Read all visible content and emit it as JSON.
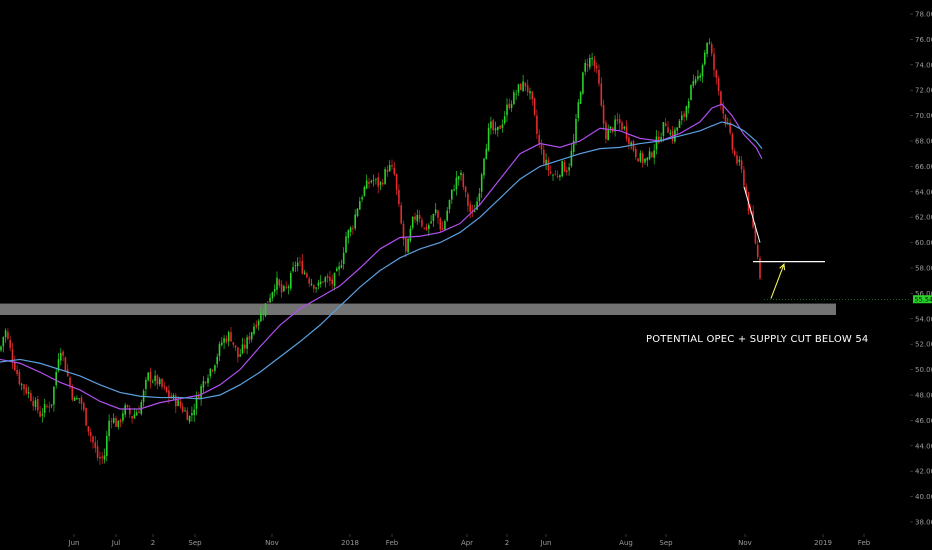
{
  "chart_data": {
    "type": "candlestick",
    "title": "",
    "instrument": "",
    "xlabel": "",
    "ylabel": "",
    "ylim": [
      37,
      79
    ],
    "y_ticks": [
      38,
      40,
      42,
      44,
      46,
      48,
      50,
      52,
      54,
      56,
      58,
      60,
      62,
      64,
      66,
      68,
      70,
      72,
      74,
      76,
      78
    ],
    "x_ticks": [
      "Jun",
      "Jul",
      "2",
      "Sep",
      "Nov",
      "2018",
      "Feb",
      "Apr",
      "2",
      "Jun",
      "Aug",
      "Sep",
      "Nov",
      "2019",
      "Feb"
    ],
    "grid": false,
    "last_price": 55.54,
    "last_price_label": "55.54",
    "close_path": [
      [
        0,
        51.5
      ],
      [
        5,
        53.2
      ],
      [
        12,
        51.0
      ],
      [
        20,
        49.0
      ],
      [
        30,
        48.0
      ],
      [
        40,
        46.5
      ],
      [
        52,
        47.5
      ],
      [
        60,
        52.0
      ],
      [
        66,
        50.0
      ],
      [
        74,
        47.5
      ],
      [
        80,
        47.8
      ],
      [
        86,
        46.0
      ],
      [
        92,
        44.5
      ],
      [
        98,
        43.0
      ],
      [
        104,
        43.0
      ],
      [
        110,
        46.5
      ],
      [
        118,
        45.5
      ],
      [
        124,
        47.0
      ],
      [
        132,
        46.3
      ],
      [
        140,
        47.0
      ],
      [
        148,
        49.5
      ],
      [
        158,
        49.0
      ],
      [
        168,
        48.0
      ],
      [
        176,
        47.5
      ],
      [
        184,
        46.8
      ],
      [
        190,
        46.2
      ],
      [
        198,
        48.0
      ],
      [
        206,
        49.5
      ],
      [
        214,
        50.5
      ],
      [
        222,
        52.2
      ],
      [
        230,
        52.8
      ],
      [
        238,
        51.0
      ],
      [
        246,
        52.0
      ],
      [
        254,
        53.5
      ],
      [
        262,
        54.5
      ],
      [
        268,
        55.5
      ],
      [
        276,
        57.0
      ],
      [
        282,
        56.0
      ],
      [
        288,
        56.5
      ],
      [
        296,
        58.5
      ],
      [
        302,
        58.0
      ],
      [
        310,
        57.0
      ],
      [
        318,
        56.5
      ],
      [
        324,
        57.2
      ],
      [
        332,
        56.8
      ],
      [
        340,
        58.0
      ],
      [
        346,
        60.5
      ],
      [
        352,
        61.2
      ],
      [
        358,
        63.0
      ],
      [
        364,
        64.2
      ],
      [
        372,
        65.0
      ],
      [
        380,
        64.5
      ],
      [
        388,
        66.0
      ],
      [
        394,
        65.5
      ],
      [
        400,
        62.0
      ],
      [
        406,
        59.0
      ],
      [
        412,
        61.5
      ],
      [
        418,
        62.5
      ],
      [
        424,
        61.0
      ],
      [
        430,
        61.5
      ],
      [
        436,
        62.5
      ],
      [
        442,
        60.8
      ],
      [
        448,
        62.8
      ],
      [
        454,
        64.5
      ],
      [
        460,
        65.5
      ],
      [
        466,
        63.5
      ],
      [
        472,
        62.0
      ],
      [
        478,
        63.5
      ],
      [
        484,
        67.0
      ],
      [
        490,
        69.2
      ],
      [
        496,
        68.5
      ],
      [
        502,
        69.5
      ],
      [
        508,
        70.8
      ],
      [
        514,
        71.5
      ],
      [
        520,
        72.3
      ],
      [
        526,
        72.5
      ],
      [
        532,
        71.0
      ],
      [
        538,
        68.0
      ],
      [
        544,
        66.5
      ],
      [
        550,
        65.5
      ],
      [
        556,
        65.2
      ],
      [
        562,
        66.0
      ],
      [
        568,
        65.8
      ],
      [
        574,
        68.0
      ],
      [
        580,
        72.0
      ],
      [
        586,
        74.2
      ],
      [
        592,
        74.5
      ],
      [
        598,
        73.0
      ],
      [
        602,
        70.0
      ],
      [
        606,
        68.5
      ],
      [
        612,
        69.0
      ],
      [
        618,
        69.5
      ],
      [
        624,
        69.0
      ],
      [
        630,
        68.0
      ],
      [
        636,
        67.0
      ],
      [
        642,
        66.5
      ],
      [
        648,
        66.5
      ],
      [
        654,
        67.5
      ],
      [
        660,
        68.5
      ],
      [
        666,
        69.5
      ],
      [
        672,
        68.2
      ],
      [
        678,
        69.2
      ],
      [
        684,
        70.0
      ],
      [
        690,
        72.0
      ],
      [
        696,
        72.5
      ],
      [
        702,
        74.0
      ],
      [
        708,
        76.2
      ],
      [
        712,
        74.5
      ],
      [
        716,
        72.8
      ],
      [
        720,
        71.5
      ],
      [
        724,
        70.0
      ],
      [
        728,
        69.0
      ],
      [
        732,
        67.5
      ],
      [
        736,
        66.5
      ],
      [
        740,
        66.0
      ],
      [
        744,
        64.8
      ],
      [
        748,
        63.0
      ],
      [
        752,
        61.5
      ],
      [
        756,
        59.8
      ],
      [
        760,
        57.5
      ],
      [
        762,
        55.6
      ]
    ],
    "overlays": [
      {
        "kind": "moving-average",
        "color": "#b14ff0",
        "path": [
          [
            0,
            50.8
          ],
          [
            20,
            50.5
          ],
          [
            40,
            49.8
          ],
          [
            60,
            49.0
          ],
          [
            80,
            48.4
          ],
          [
            100,
            47.5
          ],
          [
            120,
            46.9
          ],
          [
            140,
            46.9
          ],
          [
            160,
            47.4
          ],
          [
            180,
            47.7
          ],
          [
            200,
            48.0
          ],
          [
            220,
            48.8
          ],
          [
            240,
            50.0
          ],
          [
            260,
            51.8
          ],
          [
            280,
            53.5
          ],
          [
            300,
            54.8
          ],
          [
            320,
            55.7
          ],
          [
            340,
            56.6
          ],
          [
            360,
            58.0
          ],
          [
            380,
            59.5
          ],
          [
            400,
            60.4
          ],
          [
            420,
            60.5
          ],
          [
            440,
            60.8
          ],
          [
            460,
            61.5
          ],
          [
            480,
            63.0
          ],
          [
            500,
            65.0
          ],
          [
            520,
            67.0
          ],
          [
            540,
            67.8
          ],
          [
            560,
            67.5
          ],
          [
            580,
            68.0
          ],
          [
            600,
            69.0
          ],
          [
            620,
            68.8
          ],
          [
            640,
            68.2
          ],
          [
            660,
            68.0
          ],
          [
            680,
            68.6
          ],
          [
            700,
            69.5
          ],
          [
            712,
            70.6
          ],
          [
            722,
            70.9
          ],
          [
            732,
            70.0
          ],
          [
            744,
            68.5
          ],
          [
            756,
            67.5
          ],
          [
            762,
            66.6
          ]
        ]
      },
      {
        "kind": "moving-average",
        "color": "#5aa0e0",
        "path": [
          [
            0,
            50.6
          ],
          [
            20,
            50.8
          ],
          [
            40,
            50.5
          ],
          [
            60,
            50.0
          ],
          [
            80,
            49.5
          ],
          [
            100,
            48.8
          ],
          [
            120,
            48.2
          ],
          [
            140,
            47.9
          ],
          [
            160,
            47.8
          ],
          [
            180,
            47.8
          ],
          [
            200,
            47.7
          ],
          [
            220,
            48.0
          ],
          [
            240,
            48.8
          ],
          [
            260,
            49.8
          ],
          [
            280,
            51.0
          ],
          [
            300,
            52.2
          ],
          [
            320,
            53.5
          ],
          [
            340,
            55.0
          ],
          [
            360,
            56.5
          ],
          [
            380,
            57.8
          ],
          [
            400,
            58.8
          ],
          [
            420,
            59.5
          ],
          [
            440,
            60.0
          ],
          [
            460,
            60.8
          ],
          [
            480,
            62.0
          ],
          [
            500,
            63.5
          ],
          [
            520,
            65.0
          ],
          [
            540,
            66.0
          ],
          [
            560,
            66.5
          ],
          [
            580,
            67.0
          ],
          [
            600,
            67.4
          ],
          [
            620,
            67.5
          ],
          [
            640,
            67.8
          ],
          [
            660,
            68.0
          ],
          [
            680,
            68.4
          ],
          [
            700,
            68.8
          ],
          [
            712,
            69.2
          ],
          [
            722,
            69.5
          ],
          [
            732,
            69.3
          ],
          [
            744,
            68.8
          ],
          [
            756,
            68.0
          ],
          [
            762,
            67.4
          ]
        ]
      }
    ],
    "support_zone": {
      "from": 54.3,
      "to": 55.2,
      "color": "#7d7d7d"
    },
    "resistance_level": {
      "value": 58.5,
      "color": "#ffffff"
    },
    "trend_line": {
      "from": [
        744,
        64.4
      ],
      "to": [
        760,
        60.0
      ],
      "color": "#ffffff"
    },
    "projection_arrow": {
      "from": [
        771,
        55.6
      ],
      "to": [
        784,
        58.3
      ],
      "color": "#f2ef55"
    },
    "annotation": "POTENTIAL OPEC + SUPPLY CUT BELOW 54",
    "colors": {
      "up": "#2bd12b",
      "down": "#e52b2b",
      "background": "#000000",
      "price_tag": "#2ad12a"
    }
  }
}
